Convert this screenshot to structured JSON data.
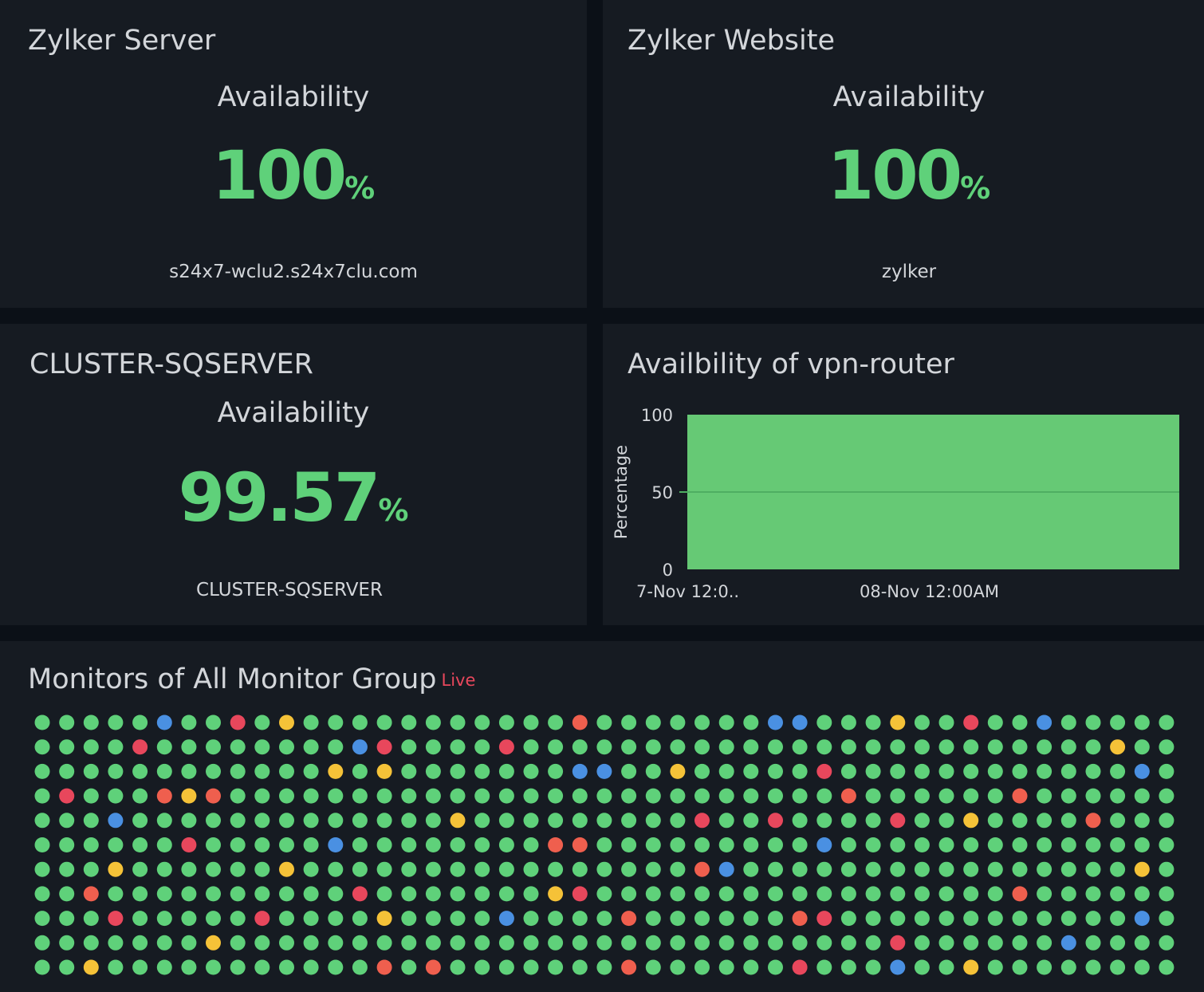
{
  "widgets": {
    "server": {
      "title": "Zylker Server",
      "label": "Availability",
      "value": "100",
      "unit": "%",
      "subtitle": "s24x7-wclu2.s24x7clu.com"
    },
    "website": {
      "title": "Zylker Website",
      "label": "Availability",
      "value": "100",
      "unit": "%",
      "subtitle": "zylker"
    },
    "cluster": {
      "title": "CLUSTER-SQSERVER",
      "label": "Availability",
      "value": "99.57",
      "unit": "%",
      "subtitle": "CLUSTER-SQSERVER"
    },
    "vpn": {
      "title": "Availbility of vpn-router"
    },
    "monitors": {
      "title": "Monitors of All Monitor Group",
      "live_label": "Live"
    }
  },
  "colors": {
    "green": "#5fd17a",
    "red": "#e8475c",
    "blue": "#4a90e2",
    "yellow": "#f5c238",
    "orange": "#ef5f4e",
    "area_fill": "#66c975"
  },
  "chart_data": {
    "type": "area",
    "title": "Availbility of vpn-router",
    "xlabel": "",
    "ylabel": "Percentage",
    "yticks": [
      0,
      50,
      100
    ],
    "ylim": [
      0,
      100
    ],
    "xtick_labels": [
      "7-Nov 12:0..",
      "08-Nov 12:00AM"
    ],
    "series": [
      {
        "values": [
          100,
          100
        ]
      }
    ],
    "grid": true
  },
  "status_grid": [
    "GGGGGBGGRGYGGGGGGGGGGGOGGGGGGGBBGGGYGGRGGBGGGGG",
    "GGGGRGGGGGGGGBRGGGGRGGGGGGGGGGGGGGGGGGGGGGGGYGG",
    "GGGGGGGGGGGGYGYGGGGGGGBBGGYGGGGGRGGGGGGGGGGGGBG",
    "GRGGGOYOGGGGGGGGGGGGGGGGGGGGGGGGGOGGGGGGOGGGGGG",
    "GGGBGGGGGGGGGGGGGYGGGGGGGGGRGGRGGGGRGGYGGGGOGGG",
    "GGGGGGRGGGGGBGGGGGGGGOOGGGGGGGGGBGGGGGGGGGGGGGG",
    "GGGYGGGGGGYGGGGGGGGGGGGGGGGOBGGGGGGGGGGGGGGGGYG",
    "GGOGGGGGGGGGGRGGGGGGGYRGGGGGGGGGGGGGGGGGOGGGGGG",
    "GGGRGGGGGRGGGGYGGGGBGGGGOGGGGGGORGGGGGGGGGGGGBG",
    "GGGGGGGYGGGGGGGGGGGGGGGGGGGGGGGGGGGRGGGGGGBGGGG",
    "GGYGGGGGGGGGGGOGOGGGGGGGOGGGGGGRGGGBGGYGGGGGGGG"
  ]
}
